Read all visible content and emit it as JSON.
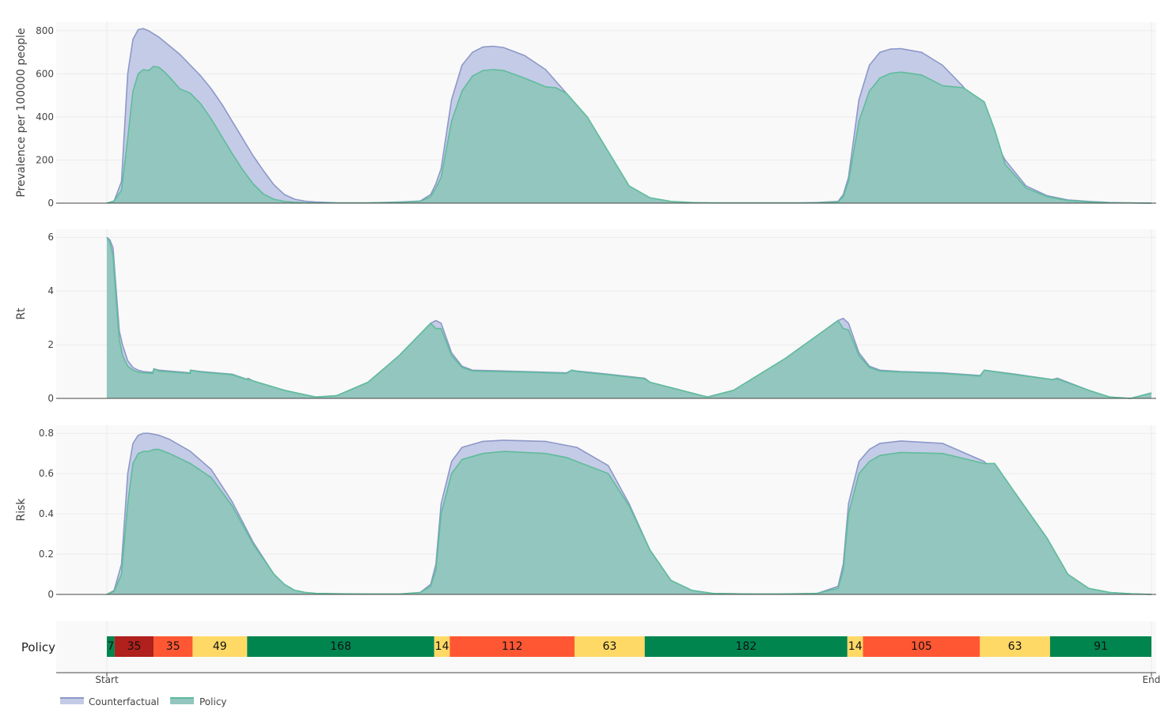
{
  "colors": {
    "counterfactual_fill": "#c4cbe6",
    "counterfactual_line": "#8d98c9",
    "policy_fill": "#93c6bf",
    "policy_line": "#5fbc9b",
    "panel_bg": "#f9f9f9",
    "grid": "#ebebeb",
    "policy_levels": {
      "green": "#00854f",
      "darkred": "#b0201c",
      "orange": "#ff5733",
      "yellow": "#ffd966"
    }
  },
  "legend": {
    "counterfactual": "Counterfactual",
    "policy": "Policy"
  },
  "x_axis": {
    "start_label": "Start",
    "end_label": "End",
    "ticks": [
      "Start",
      "End"
    ]
  },
  "chart_data": [
    {
      "type": "area",
      "ylabel": "Prevalence per 100000 people",
      "ylim": [
        0,
        840
      ],
      "yticks": [
        0,
        200,
        400,
        600,
        800
      ],
      "xlim": [
        0,
        1
      ],
      "series": [
        {
          "name": "Counterfactual",
          "x": [
            0,
            0.007,
            0.014,
            0.02,
            0.025,
            0.03,
            0.035,
            0.04,
            0.05,
            0.06,
            0.07,
            0.08,
            0.09,
            0.1,
            0.11,
            0.12,
            0.13,
            0.14,
            0.15,
            0.16,
            0.17,
            0.18,
            0.19,
            0.2,
            0.22,
            0.25,
            0.28,
            0.3,
            0.31,
            0.315,
            0.32,
            0.33,
            0.34,
            0.35,
            0.36,
            0.37,
            0.38,
            0.4,
            0.42,
            0.44,
            0.46,
            0.48,
            0.5,
            0.52,
            0.54,
            0.56,
            0.58,
            0.6,
            0.62,
            0.64,
            0.66,
            0.68,
            0.7,
            0.7,
            0.705,
            0.71,
            0.72,
            0.73,
            0.74,
            0.75,
            0.76,
            0.78,
            0.8,
            0.82,
            0.84,
            0.86,
            0.88,
            0.9,
            0.92,
            0.94,
            0.96,
            0.98,
            1
          ],
          "y": [
            0,
            10,
            100,
            600,
            760,
            805,
            810,
            800,
            770,
            730,
            690,
            640,
            590,
            530,
            460,
            380,
            300,
            220,
            150,
            85,
            40,
            18,
            9,
            5,
            2,
            1,
            5,
            10,
            40,
            90,
            160,
            480,
            640,
            700,
            725,
            728,
            722,
            685,
            620,
            510,
            330,
            150,
            40,
            10,
            4,
            2,
            1,
            1,
            1,
            1,
            1,
            3,
            8,
            8,
            40,
            120,
            480,
            640,
            700,
            715,
            717,
            700,
            640,
            540,
            380,
            200,
            80,
            35,
            15,
            8,
            3,
            1,
            0
          ]
        },
        {
          "name": "Policy",
          "x": [
            0,
            0.007,
            0.014,
            0.02,
            0.025,
            0.03,
            0.035,
            0.04,
            0.045,
            0.05,
            0.055,
            0.06,
            0.07,
            0.08,
            0.09,
            0.1,
            0.11,
            0.12,
            0.13,
            0.14,
            0.15,
            0.16,
            0.17,
            0.18,
            0.19,
            0.2,
            0.22,
            0.25,
            0.28,
            0.3,
            0.31,
            0.315,
            0.32,
            0.33,
            0.34,
            0.35,
            0.36,
            0.37,
            0.38,
            0.4,
            0.42,
            0.43,
            0.44,
            0.46,
            0.48,
            0.5,
            0.52,
            0.54,
            0.56,
            0.58,
            0.6,
            0.62,
            0.64,
            0.66,
            0.68,
            0.7,
            0.7,
            0.705,
            0.71,
            0.72,
            0.73,
            0.74,
            0.75,
            0.76,
            0.78,
            0.8,
            0.82,
            0.84,
            0.85,
            0.86,
            0.88,
            0.9,
            0.92,
            0.94,
            0.96,
            0.98,
            1
          ],
          "y": [
            0,
            10,
            60,
            300,
            520,
            600,
            620,
            615,
            635,
            630,
            610,
            585,
            530,
            510,
            460,
            390,
            310,
            230,
            155,
            90,
            42,
            18,
            8,
            4,
            2,
            1,
            1,
            1,
            4,
            8,
            30,
            70,
            120,
            380,
            520,
            590,
            615,
            620,
            615,
            580,
            540,
            535,
            510,
            400,
            240,
            80,
            25,
            8,
            3,
            1,
            1,
            1,
            1,
            1,
            2,
            6,
            6,
            30,
            100,
            380,
            520,
            580,
            602,
            608,
            595,
            545,
            535,
            470,
            340,
            180,
            70,
            30,
            12,
            6,
            2,
            1,
            0
          ]
        }
      ]
    },
    {
      "type": "area",
      "ylabel": "Rt",
      "ylim": [
        0,
        6.3
      ],
      "yticks": [
        0,
        2,
        4,
        6
      ],
      "xlim": [
        0,
        1
      ],
      "series": [
        {
          "name": "Counterfactual",
          "x": [
            0,
            0.003,
            0.006,
            0.009,
            0.012,
            0.015,
            0.02,
            0.025,
            0.03,
            0.035,
            0.04,
            0.044,
            0.045,
            0.05,
            0.08,
            0.08,
            0.09,
            0.12,
            0.135,
            0.135,
            0.14,
            0.17,
            0.2,
            0.22,
            0.25,
            0.28,
            0.3,
            0.31,
            0.315,
            0.32,
            0.33,
            0.34,
            0.35,
            0.4,
            0.44,
            0.445,
            0.45,
            0.48,
            0.515,
            0.52,
            0.55,
            0.575,
            0.6,
            0.65,
            0.7,
            0.705,
            0.71,
            0.72,
            0.73,
            0.74,
            0.76,
            0.8,
            0.836,
            0.84,
            0.87,
            0.905,
            0.91,
            0.94,
            0.96,
            0.98,
            1
          ],
          "y": [
            6.0,
            5.9,
            5.6,
            4.0,
            2.5,
            2.0,
            1.4,
            1.15,
            1.05,
            1.0,
            0.98,
            0.97,
            1.1,
            1.05,
            0.95,
            1.05,
            1.0,
            0.9,
            0.7,
            0.75,
            0.65,
            0.3,
            0.05,
            0.1,
            0.6,
            1.6,
            2.4,
            2.8,
            2.9,
            2.8,
            1.7,
            1.2,
            1.05,
            1.0,
            0.95,
            1.05,
            1.02,
            0.9,
            0.75,
            0.6,
            0.3,
            0.05,
            0.3,
            1.5,
            2.9,
            2.98,
            2.8,
            1.7,
            1.2,
            1.05,
            1.0,
            0.95,
            0.85,
            1.05,
            0.9,
            0.7,
            0.75,
            0.3,
            0.05,
            0.0,
            0.2
          ]
        },
        {
          "name": "Policy",
          "x": [
            0,
            0.003,
            0.006,
            0.009,
            0.012,
            0.015,
            0.02,
            0.025,
            0.03,
            0.035,
            0.04,
            0.044,
            0.045,
            0.05,
            0.08,
            0.08,
            0.09,
            0.12,
            0.135,
            0.135,
            0.14,
            0.17,
            0.2,
            0.22,
            0.25,
            0.28,
            0.3,
            0.31,
            0.315,
            0.32,
            0.33,
            0.34,
            0.35,
            0.4,
            0.44,
            0.445,
            0.45,
            0.48,
            0.515,
            0.52,
            0.55,
            0.575,
            0.6,
            0.65,
            0.7,
            0.705,
            0.71,
            0.72,
            0.73,
            0.74,
            0.76,
            0.8,
            0.836,
            0.84,
            0.87,
            0.905,
            0.91,
            0.94,
            0.96,
            0.98,
            1
          ],
          "y": [
            6.0,
            5.8,
            5.3,
            3.6,
            2.2,
            1.6,
            1.2,
            1.05,
            0.98,
            0.95,
            0.94,
            0.93,
            1.1,
            1.02,
            0.93,
            1.05,
            0.98,
            0.88,
            0.7,
            0.72,
            0.65,
            0.3,
            0.05,
            0.1,
            0.6,
            1.6,
            2.4,
            2.8,
            2.6,
            2.6,
            1.6,
            1.15,
            1.02,
            0.98,
            0.93,
            1.05,
            1.0,
            0.88,
            0.73,
            0.6,
            0.3,
            0.05,
            0.3,
            1.5,
            2.9,
            2.6,
            2.55,
            1.6,
            1.15,
            1.02,
            0.98,
            0.93,
            0.83,
            1.05,
            0.88,
            0.7,
            0.72,
            0.3,
            0.05,
            0.0,
            0.2
          ]
        }
      ]
    },
    {
      "type": "area",
      "ylabel": "Risk",
      "ylim": [
        0,
        0.84
      ],
      "yticks": [
        "0",
        "0.2",
        "0.4",
        "0.6",
        "0.8"
      ],
      "xlim": [
        0,
        1
      ],
      "series": [
        {
          "name": "Counterfactual",
          "x": [
            0,
            0.007,
            0.014,
            0.02,
            0.025,
            0.03,
            0.035,
            0.04,
            0.05,
            0.06,
            0.08,
            0.1,
            0.12,
            0.14,
            0.16,
            0.17,
            0.18,
            0.19,
            0.2,
            0.22,
            0.25,
            0.28,
            0.3,
            0.31,
            0.315,
            0.32,
            0.33,
            0.34,
            0.36,
            0.38,
            0.42,
            0.45,
            0.48,
            0.5,
            0.52,
            0.54,
            0.56,
            0.58,
            0.6,
            0.62,
            0.64,
            0.66,
            0.68,
            0.7,
            0.705,
            0.71,
            0.72,
            0.73,
            0.74,
            0.76,
            0.8,
            0.84,
            0.87,
            0.9,
            0.92,
            0.94,
            0.96,
            0.98,
            1
          ],
          "y": [
            0,
            0.02,
            0.15,
            0.6,
            0.75,
            0.79,
            0.8,
            0.8,
            0.79,
            0.77,
            0.71,
            0.62,
            0.46,
            0.26,
            0.1,
            0.05,
            0.02,
            0.01,
            0.005,
            0.003,
            0.002,
            0.002,
            0.01,
            0.05,
            0.15,
            0.45,
            0.66,
            0.73,
            0.76,
            0.766,
            0.76,
            0.73,
            0.64,
            0.45,
            0.22,
            0.07,
            0.02,
            0.005,
            0.003,
            0.002,
            0.002,
            0.003,
            0.005,
            0.04,
            0.15,
            0.45,
            0.66,
            0.72,
            0.75,
            0.762,
            0.75,
            0.66,
            0.5,
            0.28,
            0.1,
            0.03,
            0.01,
            0.003,
            0
          ]
        },
        {
          "name": "Policy",
          "x": [
            0,
            0.007,
            0.014,
            0.02,
            0.025,
            0.03,
            0.035,
            0.04,
            0.045,
            0.05,
            0.055,
            0.06,
            0.08,
            0.1,
            0.12,
            0.14,
            0.16,
            0.17,
            0.18,
            0.19,
            0.2,
            0.22,
            0.25,
            0.28,
            0.3,
            0.31,
            0.315,
            0.32,
            0.33,
            0.34,
            0.36,
            0.38,
            0.42,
            0.44,
            0.45,
            0.48,
            0.5,
            0.52,
            0.54,
            0.56,
            0.58,
            0.6,
            0.62,
            0.64,
            0.66,
            0.68,
            0.7,
            0.705,
            0.71,
            0.72,
            0.73,
            0.74,
            0.76,
            0.8,
            0.84,
            0.85,
            0.87,
            0.9,
            0.92,
            0.94,
            0.96,
            0.98,
            1
          ],
          "y": [
            0,
            0.015,
            0.1,
            0.45,
            0.65,
            0.7,
            0.71,
            0.71,
            0.72,
            0.72,
            0.71,
            0.7,
            0.65,
            0.58,
            0.44,
            0.25,
            0.1,
            0.05,
            0.02,
            0.01,
            0.005,
            0.003,
            0.002,
            0.002,
            0.01,
            0.04,
            0.12,
            0.4,
            0.6,
            0.67,
            0.7,
            0.71,
            0.7,
            0.68,
            0.66,
            0.6,
            0.44,
            0.22,
            0.07,
            0.02,
            0.005,
            0.003,
            0.002,
            0.002,
            0.003,
            0.005,
            0.03,
            0.12,
            0.4,
            0.6,
            0.66,
            0.69,
            0.705,
            0.7,
            0.65,
            0.65,
            0.5,
            0.28,
            0.1,
            0.03,
            0.01,
            0.003,
            0
          ]
        }
      ]
    }
  ],
  "policy": {
    "label": "Policy",
    "segments": [
      {
        "days": 7,
        "label": "7",
        "level": "green"
      },
      {
        "days": 35,
        "label": "35",
        "level": "darkred"
      },
      {
        "days": 35,
        "label": "35",
        "level": "orange"
      },
      {
        "days": 49,
        "label": "49",
        "level": "yellow"
      },
      {
        "days": 168,
        "label": "168",
        "level": "green"
      },
      {
        "days": 14,
        "label": "14",
        "level": "yellow"
      },
      {
        "days": 112,
        "label": "112",
        "level": "orange"
      },
      {
        "days": 63,
        "label": "63",
        "level": "yellow"
      },
      {
        "days": 182,
        "label": "182",
        "level": "green"
      },
      {
        "days": 14,
        "label": "14",
        "level": "yellow"
      },
      {
        "days": 105,
        "label": "105",
        "level": "orange"
      },
      {
        "days": 63,
        "label": "63",
        "level": "yellow"
      },
      {
        "days": 91,
        "label": "91",
        "level": "green"
      }
    ]
  }
}
